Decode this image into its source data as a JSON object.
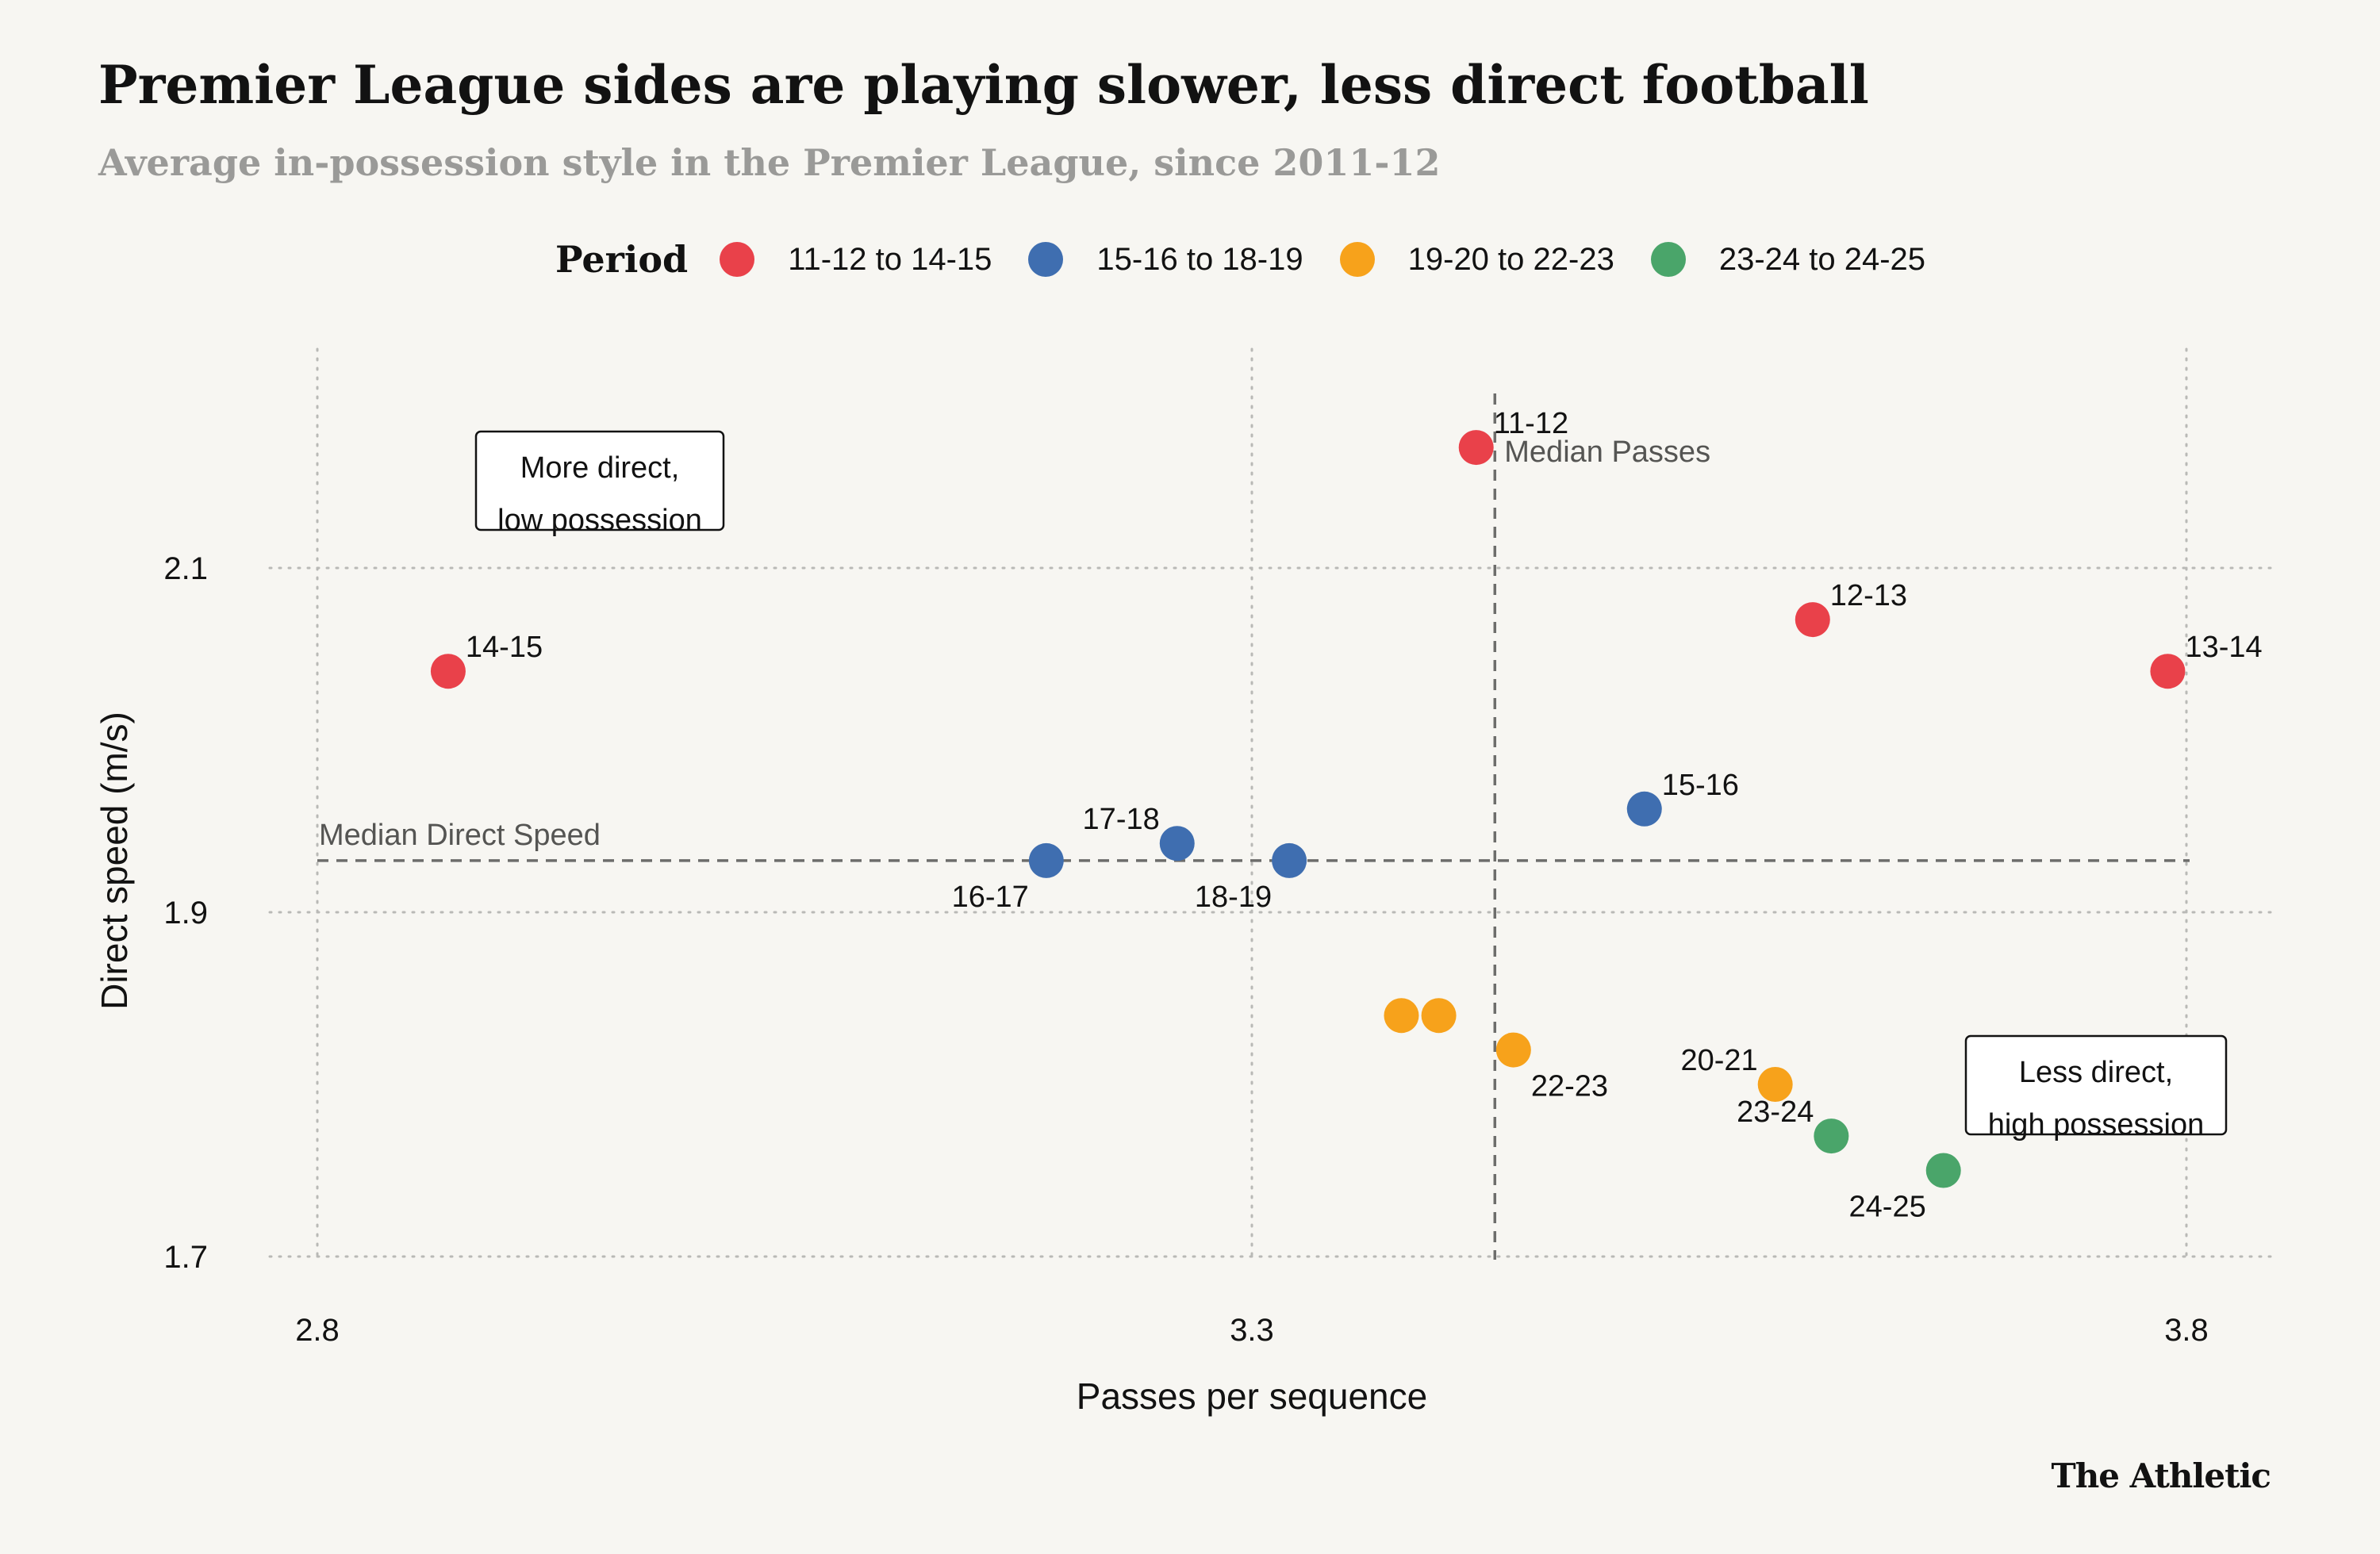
{
  "header": {
    "title": "Premier League sides are playing slower, less direct football",
    "subtitle": "Average in-possession style in the Premier League, since 2011-12"
  },
  "legend": {
    "title": "Period",
    "items": [
      {
        "label": "11-12 to 14-15",
        "color": "#e9414a"
      },
      {
        "label": "15-16 to 18-19",
        "color": "#3f6eb0"
      },
      {
        "label": "19-20 to 22-23",
        "color": "#f7a21b"
      },
      {
        "label": "23-24 to 24-25",
        "color": "#4aa56a"
      }
    ]
  },
  "chart_data": {
    "type": "scatter",
    "xlabel": "Passes per sequence",
    "ylabel": "Direct speed (m/s)",
    "xlim": [
      2.8,
      3.8
    ],
    "ylim": [
      1.7,
      2.2
    ],
    "xticks": [
      "2.8",
      "3.3",
      "3.8"
    ],
    "yticks": [
      "1.7",
      "1.9",
      "2.1"
    ],
    "grid": "dotted",
    "legend_position": "top",
    "medians": {
      "x": 3.43,
      "x_label": "Median Passes",
      "y": 1.93,
      "y_label": "Median Direct Speed"
    },
    "quadrant_labels": {
      "top_left": [
        "More direct,",
        "low possession"
      ],
      "bottom_right": [
        "Less direct,",
        "high possession"
      ]
    },
    "points": [
      {
        "label": "11-12",
        "x": 3.42,
        "y": 2.17,
        "period": 0,
        "label_pos": "top-right"
      },
      {
        "label": "12-13",
        "x": 3.6,
        "y": 2.07,
        "period": 0,
        "label_pos": "top-right"
      },
      {
        "label": "13-14",
        "x": 3.79,
        "y": 2.04,
        "period": 0,
        "label_pos": "top-right"
      },
      {
        "label": "14-15",
        "x": 2.87,
        "y": 2.04,
        "period": 0,
        "label_pos": "top-right"
      },
      {
        "label": "15-16",
        "x": 3.51,
        "y": 1.96,
        "period": 1,
        "label_pos": "top-right"
      },
      {
        "label": "16-17",
        "x": 3.19,
        "y": 1.93,
        "period": 1,
        "label_pos": "bottom-left"
      },
      {
        "label": "17-18",
        "x": 3.26,
        "y": 1.94,
        "period": 1,
        "label_pos": "top-left"
      },
      {
        "label": "18-19",
        "x": 3.32,
        "y": 1.93,
        "period": 1,
        "label_pos": "bottom-left"
      },
      {
        "label": "",
        "x": 3.38,
        "y": 1.84,
        "period": 2,
        "label_pos": "none"
      },
      {
        "label": "",
        "x": 3.4,
        "y": 1.84,
        "period": 2,
        "label_pos": "none"
      },
      {
        "label": "22-23",
        "x": 3.44,
        "y": 1.82,
        "period": 2,
        "label_pos": "bottom-right"
      },
      {
        "label": "20-21",
        "x": 3.58,
        "y": 1.8,
        "period": 2,
        "label_pos": "top-left"
      },
      {
        "label": "23-24",
        "x": 3.61,
        "y": 1.77,
        "period": 3,
        "label_pos": "top-left"
      },
      {
        "label": "24-25",
        "x": 3.67,
        "y": 1.75,
        "period": 3,
        "label_pos": "bottom-left"
      }
    ]
  },
  "brand": {
    "logo_text": "The Athletic"
  }
}
